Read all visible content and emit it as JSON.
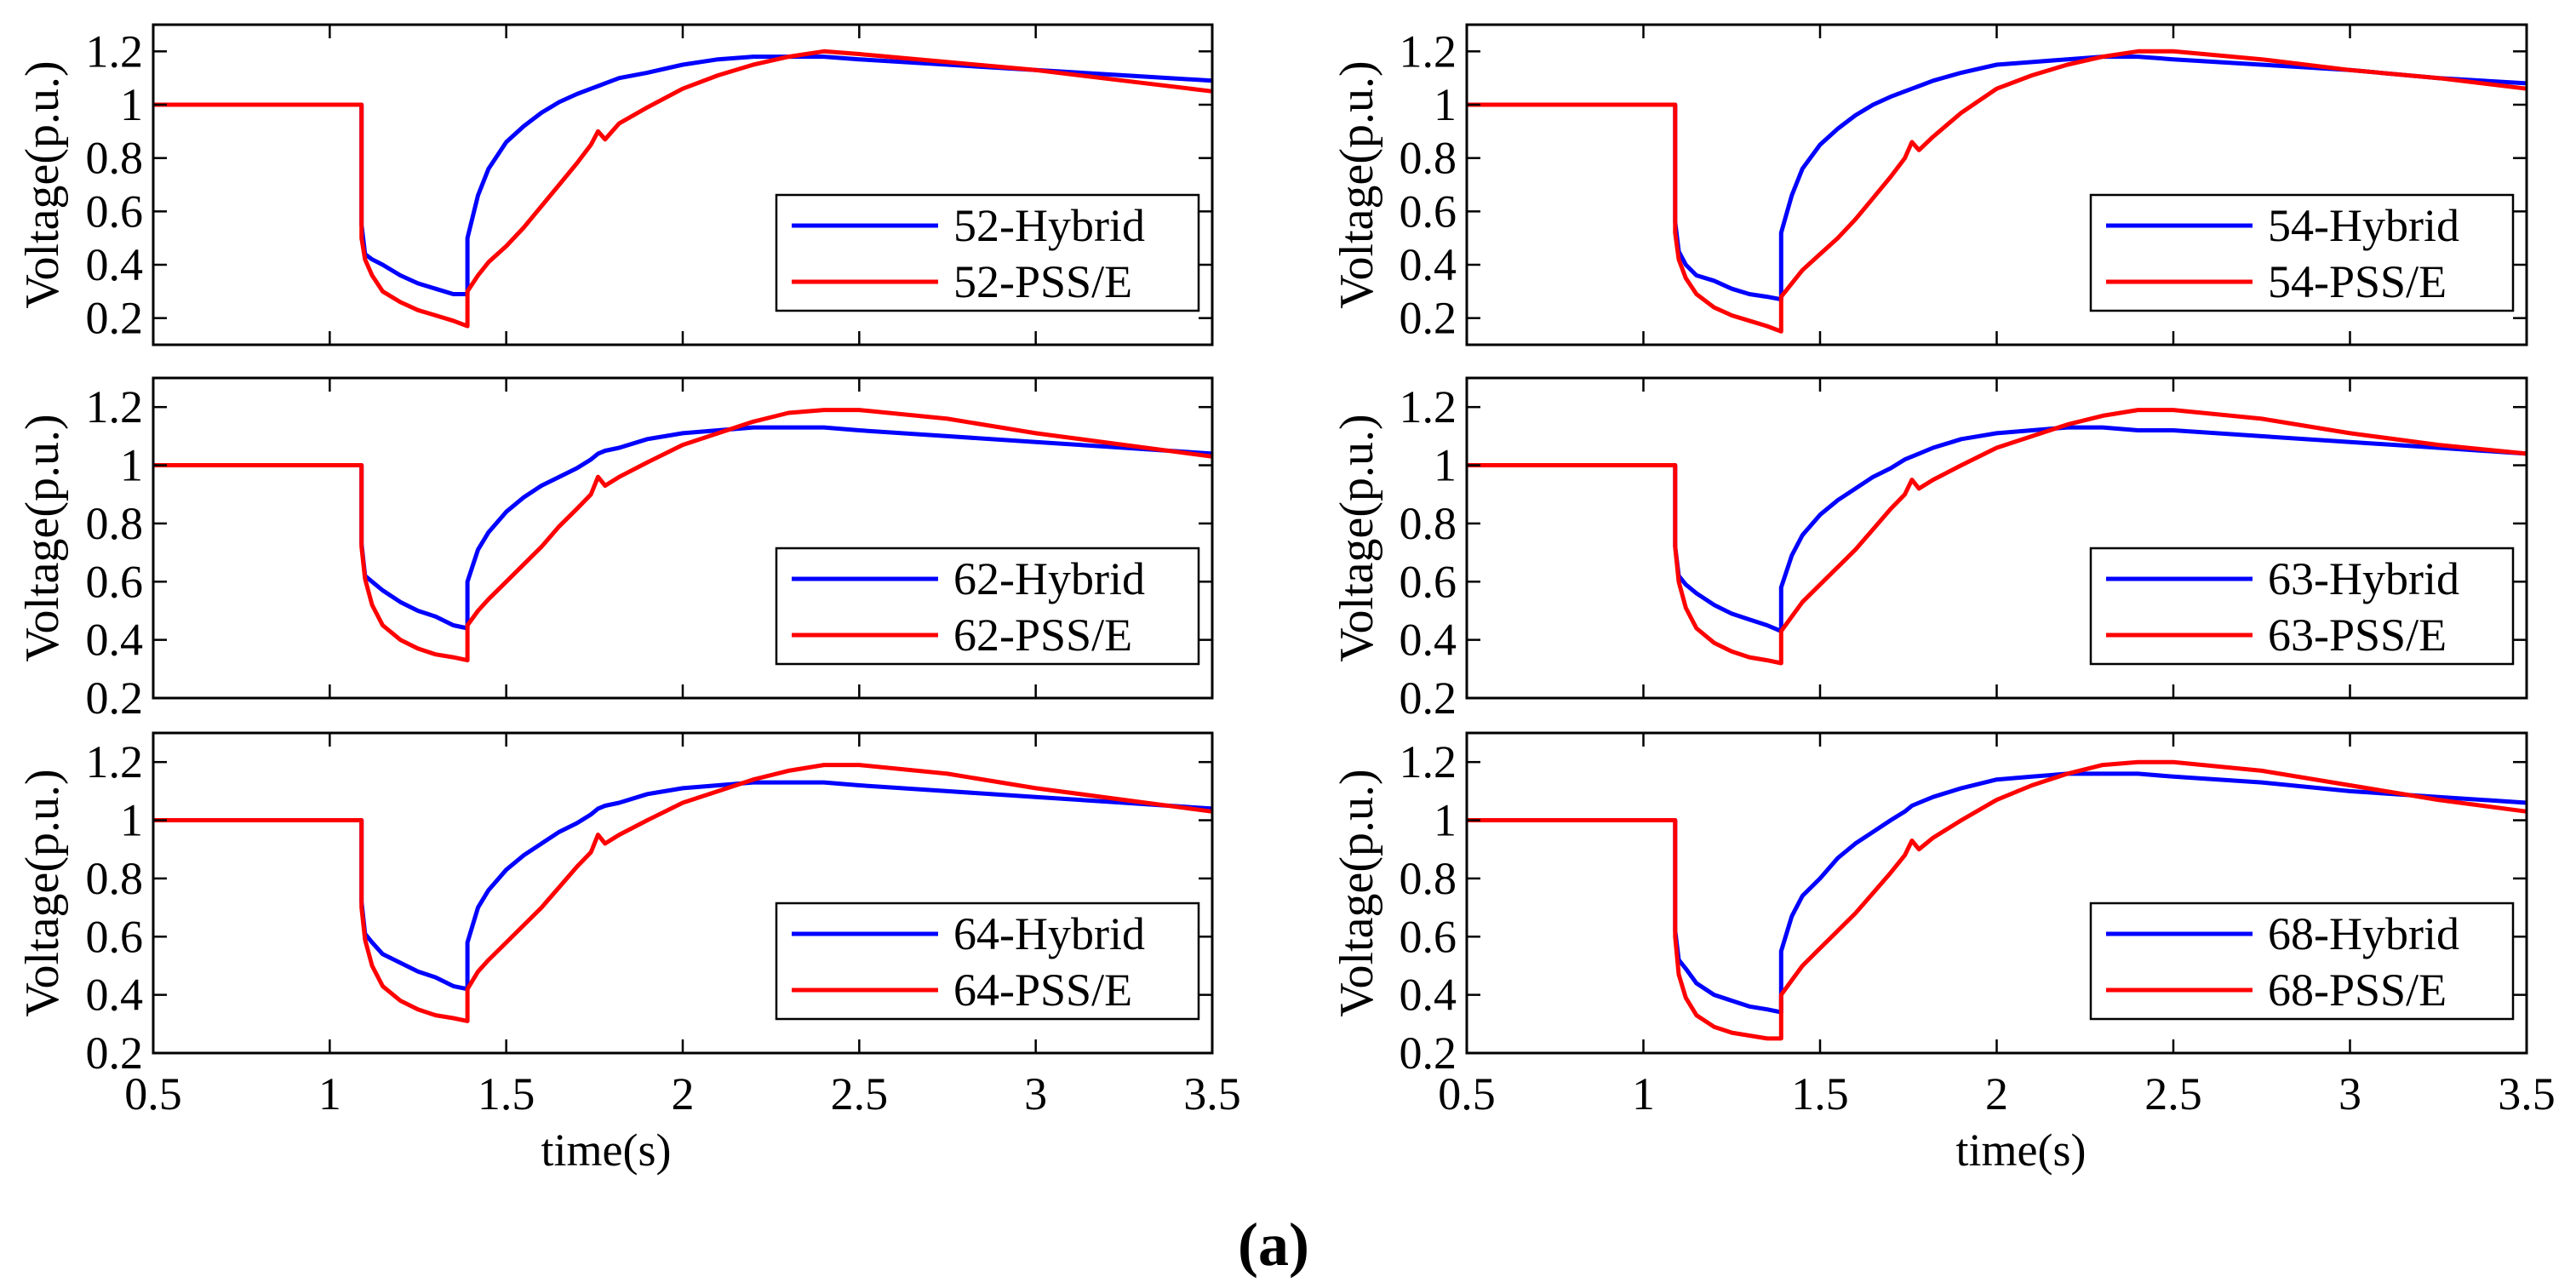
{
  "caption": "(a)",
  "chart_data": [
    {
      "type": "line",
      "ylabel": "Voltage(p.u.)",
      "xlim": [
        0.5,
        3.5
      ],
      "ylim": [
        0.1,
        1.3
      ],
      "xticks": [
        0.5,
        1,
        1.5,
        2,
        2.5,
        3,
        3.5
      ],
      "yticks": [
        0.2,
        0.4,
        0.6,
        0.8,
        1,
        1.2
      ],
      "show_xtick_labels": false,
      "grid": false,
      "legend": "right",
      "x": [
        0.5,
        1.09,
        1.09,
        1.1,
        1.12,
        1.15,
        1.2,
        1.25,
        1.3,
        1.35,
        1.39,
        1.39,
        1.42,
        1.45,
        1.5,
        1.55,
        1.6,
        1.65,
        1.7,
        1.74,
        1.76,
        1.78,
        1.82,
        1.9,
        2.0,
        2.1,
        2.2,
        2.3,
        2.4,
        2.5,
        2.75,
        3.0,
        3.25,
        3.5
      ],
      "series": [
        {
          "name": "52-Hybrid",
          "color": "#0000ff",
          "y": [
            1.0,
            1.0,
            0.55,
            0.44,
            0.42,
            0.4,
            0.36,
            0.33,
            0.31,
            0.29,
            0.29,
            0.5,
            0.66,
            0.76,
            0.86,
            0.92,
            0.97,
            1.01,
            1.04,
            1.06,
            1.07,
            1.08,
            1.1,
            1.12,
            1.15,
            1.17,
            1.18,
            1.18,
            1.18,
            1.17,
            1.15,
            1.13,
            1.11,
            1.09
          ]
        },
        {
          "name": "52-PSS/E",
          "color": "#ff0000",
          "y": [
            1.0,
            1.0,
            0.5,
            0.42,
            0.36,
            0.3,
            0.26,
            0.23,
            0.21,
            0.19,
            0.17,
            0.3,
            0.36,
            0.41,
            0.47,
            0.54,
            0.62,
            0.7,
            0.78,
            0.85,
            0.9,
            0.87,
            0.93,
            0.99,
            1.06,
            1.11,
            1.15,
            1.18,
            1.2,
            1.19,
            1.16,
            1.13,
            1.09,
            1.05
          ]
        }
      ]
    },
    {
      "type": "line",
      "ylabel": "Voltage(p.u.)",
      "xlim": [
        0.5,
        3.5
      ],
      "ylim": [
        0.1,
        1.3
      ],
      "xticks": [
        0.5,
        1,
        1.5,
        2,
        2.5,
        3,
        3.5
      ],
      "yticks": [
        0.2,
        0.4,
        0.6,
        0.8,
        1,
        1.2
      ],
      "show_xtick_labels": false,
      "grid": false,
      "legend": "right",
      "x": [
        0.5,
        1.09,
        1.09,
        1.1,
        1.12,
        1.15,
        1.2,
        1.25,
        1.3,
        1.35,
        1.39,
        1.39,
        1.42,
        1.45,
        1.5,
        1.55,
        1.6,
        1.65,
        1.7,
        1.74,
        1.76,
        1.78,
        1.82,
        1.9,
        2.0,
        2.1,
        2.2,
        2.3,
        2.4,
        2.5,
        2.75,
        3.0,
        3.25,
        3.5
      ],
      "series": [
        {
          "name": "54-Hybrid",
          "color": "#0000ff",
          "y": [
            1.0,
            1.0,
            0.56,
            0.45,
            0.4,
            0.36,
            0.34,
            0.31,
            0.29,
            0.28,
            0.27,
            0.52,
            0.66,
            0.76,
            0.85,
            0.91,
            0.96,
            1.0,
            1.03,
            1.05,
            1.06,
            1.07,
            1.09,
            1.12,
            1.15,
            1.16,
            1.17,
            1.18,
            1.18,
            1.17,
            1.15,
            1.13,
            1.1,
            1.08
          ]
        },
        {
          "name": "54-PSS/E",
          "color": "#ff0000",
          "y": [
            1.0,
            1.0,
            0.52,
            0.42,
            0.35,
            0.29,
            0.24,
            0.21,
            0.19,
            0.17,
            0.15,
            0.28,
            0.33,
            0.38,
            0.44,
            0.5,
            0.57,
            0.65,
            0.73,
            0.8,
            0.86,
            0.83,
            0.88,
            0.97,
            1.06,
            1.11,
            1.15,
            1.18,
            1.2,
            1.2,
            1.17,
            1.13,
            1.1,
            1.06
          ]
        }
      ]
    },
    {
      "type": "line",
      "ylabel": "Voltage(p.u.)",
      "xlim": [
        0.5,
        3.5
      ],
      "ylim": [
        0.2,
        1.3
      ],
      "xticks": [
        0.5,
        1,
        1.5,
        2,
        2.5,
        3,
        3.5
      ],
      "yticks": [
        0.2,
        0.4,
        0.6,
        0.8,
        1,
        1.2
      ],
      "show_xtick_labels": false,
      "grid": false,
      "legend": "right",
      "x": [
        0.5,
        1.09,
        1.09,
        1.1,
        1.12,
        1.15,
        1.2,
        1.25,
        1.3,
        1.35,
        1.39,
        1.39,
        1.42,
        1.45,
        1.5,
        1.55,
        1.6,
        1.65,
        1.7,
        1.74,
        1.76,
        1.78,
        1.82,
        1.9,
        2.0,
        2.1,
        2.2,
        2.3,
        2.4,
        2.5,
        2.75,
        3.0,
        3.25,
        3.5
      ],
      "series": [
        {
          "name": "62-Hybrid",
          "color": "#0000ff",
          "y": [
            1.0,
            1.0,
            0.73,
            0.62,
            0.6,
            0.57,
            0.53,
            0.5,
            0.48,
            0.45,
            0.44,
            0.6,
            0.71,
            0.77,
            0.84,
            0.89,
            0.93,
            0.96,
            0.99,
            1.02,
            1.04,
            1.05,
            1.06,
            1.09,
            1.11,
            1.12,
            1.13,
            1.13,
            1.13,
            1.12,
            1.1,
            1.08,
            1.06,
            1.04
          ]
        },
        {
          "name": "62-PSS/E",
          "color": "#ff0000",
          "y": [
            1.0,
            1.0,
            0.72,
            0.61,
            0.52,
            0.45,
            0.4,
            0.37,
            0.35,
            0.34,
            0.33,
            0.45,
            0.5,
            0.54,
            0.6,
            0.66,
            0.72,
            0.79,
            0.85,
            0.9,
            0.96,
            0.93,
            0.96,
            1.01,
            1.07,
            1.11,
            1.15,
            1.18,
            1.19,
            1.19,
            1.16,
            1.11,
            1.07,
            1.03
          ]
        }
      ]
    },
    {
      "type": "line",
      "ylabel": "Voltage(p.u.)",
      "xlim": [
        0.5,
        3.5
      ],
      "ylim": [
        0.2,
        1.3
      ],
      "xticks": [
        0.5,
        1,
        1.5,
        2,
        2.5,
        3,
        3.5
      ],
      "yticks": [
        0.2,
        0.4,
        0.6,
        0.8,
        1,
        1.2
      ],
      "show_xtick_labels": false,
      "grid": false,
      "legend": "right",
      "x": [
        0.5,
        1.09,
        1.09,
        1.1,
        1.12,
        1.15,
        1.2,
        1.25,
        1.3,
        1.35,
        1.39,
        1.39,
        1.42,
        1.45,
        1.5,
        1.55,
        1.6,
        1.65,
        1.7,
        1.74,
        1.76,
        1.78,
        1.82,
        1.9,
        2.0,
        2.1,
        2.2,
        2.3,
        2.4,
        2.5,
        2.75,
        3.0,
        3.25,
        3.5
      ],
      "series": [
        {
          "name": "63-Hybrid",
          "color": "#0000ff",
          "y": [
            1.0,
            1.0,
            0.72,
            0.62,
            0.59,
            0.56,
            0.52,
            0.49,
            0.47,
            0.45,
            0.43,
            0.58,
            0.69,
            0.76,
            0.83,
            0.88,
            0.92,
            0.96,
            0.99,
            1.02,
            1.03,
            1.04,
            1.06,
            1.09,
            1.11,
            1.12,
            1.13,
            1.13,
            1.12,
            1.12,
            1.1,
            1.08,
            1.06,
            1.04
          ]
        },
        {
          "name": "63-PSS/E",
          "color": "#ff0000",
          "y": [
            1.0,
            1.0,
            0.72,
            0.6,
            0.51,
            0.44,
            0.39,
            0.36,
            0.34,
            0.33,
            0.32,
            0.43,
            0.48,
            0.53,
            0.59,
            0.65,
            0.71,
            0.78,
            0.85,
            0.9,
            0.95,
            0.92,
            0.95,
            1.0,
            1.06,
            1.1,
            1.14,
            1.17,
            1.19,
            1.19,
            1.16,
            1.11,
            1.07,
            1.04
          ]
        }
      ]
    },
    {
      "type": "line",
      "ylabel": "Voltage(p.u.)",
      "xlabel": "time(s)",
      "xlim": [
        0.5,
        3.5
      ],
      "ylim": [
        0.2,
        1.3
      ],
      "xticks": [
        0.5,
        1,
        1.5,
        2,
        2.5,
        3,
        3.5
      ],
      "yticks": [
        0.2,
        0.4,
        0.6,
        0.8,
        1,
        1.2
      ],
      "show_xtick_labels": true,
      "grid": false,
      "legend": "right",
      "x": [
        0.5,
        1.09,
        1.09,
        1.1,
        1.12,
        1.15,
        1.2,
        1.25,
        1.3,
        1.35,
        1.39,
        1.39,
        1.42,
        1.45,
        1.5,
        1.55,
        1.6,
        1.65,
        1.7,
        1.74,
        1.76,
        1.78,
        1.82,
        1.9,
        2.0,
        2.1,
        2.2,
        2.3,
        2.4,
        2.5,
        2.75,
        3.0,
        3.25,
        3.5
      ],
      "series": [
        {
          "name": "64-Hybrid",
          "color": "#0000ff",
          "y": [
            1.0,
            1.0,
            0.72,
            0.61,
            0.58,
            0.54,
            0.51,
            0.48,
            0.46,
            0.43,
            0.42,
            0.58,
            0.7,
            0.76,
            0.83,
            0.88,
            0.92,
            0.96,
            0.99,
            1.02,
            1.04,
            1.05,
            1.06,
            1.09,
            1.11,
            1.12,
            1.13,
            1.13,
            1.13,
            1.12,
            1.1,
            1.08,
            1.06,
            1.04
          ]
        },
        {
          "name": "64-PSS/E",
          "color": "#ff0000",
          "y": [
            1.0,
            1.0,
            0.7,
            0.59,
            0.5,
            0.43,
            0.38,
            0.35,
            0.33,
            0.32,
            0.31,
            0.42,
            0.48,
            0.52,
            0.58,
            0.64,
            0.7,
            0.77,
            0.84,
            0.89,
            0.95,
            0.92,
            0.95,
            1.0,
            1.06,
            1.1,
            1.14,
            1.17,
            1.19,
            1.19,
            1.16,
            1.11,
            1.07,
            1.03
          ]
        }
      ]
    },
    {
      "type": "line",
      "ylabel": "Voltage(p.u.)",
      "xlabel": "time(s)",
      "xlim": [
        0.5,
        3.5
      ],
      "ylim": [
        0.2,
        1.3
      ],
      "xticks": [
        0.5,
        1,
        1.5,
        2,
        2.5,
        3,
        3.5
      ],
      "yticks": [
        0.2,
        0.4,
        0.6,
        0.8,
        1,
        1.2
      ],
      "show_xtick_labels": true,
      "grid": false,
      "legend": "right",
      "x": [
        0.5,
        1.09,
        1.09,
        1.1,
        1.12,
        1.15,
        1.2,
        1.25,
        1.3,
        1.35,
        1.39,
        1.39,
        1.42,
        1.45,
        1.5,
        1.55,
        1.6,
        1.65,
        1.7,
        1.74,
        1.76,
        1.78,
        1.82,
        1.9,
        2.0,
        2.1,
        2.2,
        2.3,
        2.4,
        2.5,
        2.75,
        3.0,
        3.25,
        3.5
      ],
      "series": [
        {
          "name": "68-Hybrid",
          "color": "#0000ff",
          "y": [
            1.0,
            1.0,
            0.62,
            0.52,
            0.49,
            0.44,
            0.4,
            0.38,
            0.36,
            0.35,
            0.34,
            0.55,
            0.67,
            0.74,
            0.8,
            0.87,
            0.92,
            0.96,
            1.0,
            1.03,
            1.05,
            1.06,
            1.08,
            1.11,
            1.14,
            1.15,
            1.16,
            1.16,
            1.16,
            1.15,
            1.13,
            1.1,
            1.08,
            1.06
          ]
        },
        {
          "name": "68-PSS/E",
          "color": "#ff0000",
          "y": [
            1.0,
            1.0,
            0.6,
            0.47,
            0.39,
            0.33,
            0.29,
            0.27,
            0.26,
            0.25,
            0.25,
            0.4,
            0.45,
            0.5,
            0.56,
            0.62,
            0.68,
            0.75,
            0.82,
            0.88,
            0.93,
            0.9,
            0.94,
            1.0,
            1.07,
            1.12,
            1.16,
            1.19,
            1.2,
            1.2,
            1.17,
            1.12,
            1.07,
            1.03
          ]
        }
      ]
    }
  ]
}
